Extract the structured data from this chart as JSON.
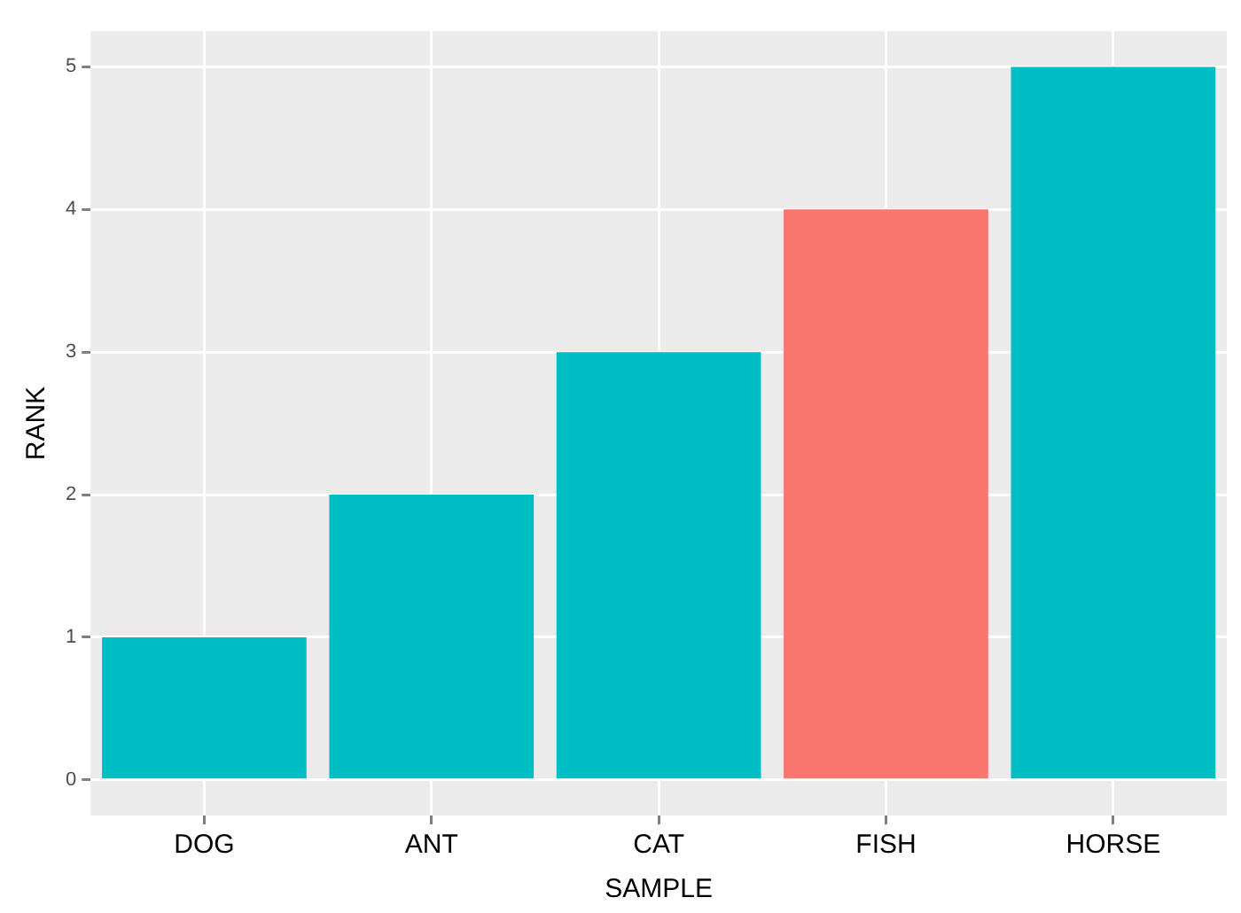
{
  "chart_data": {
    "type": "bar",
    "xlabel": "SAMPLE",
    "ylabel": "RANK",
    "categories": [
      "DOG",
      "ANT",
      "CAT",
      "FISH",
      "HORSE"
    ],
    "values": [
      1,
      2,
      3,
      4,
      5
    ],
    "colors": [
      "#00bfc4",
      "#00bfc4",
      "#00bfc4",
      "#f8766d",
      "#00bfc4"
    ],
    "ylim": [
      -0.25,
      5.25
    ],
    "yticks": [
      0,
      1,
      2,
      3,
      4,
      5
    ],
    "grid": true,
    "legend": false
  }
}
